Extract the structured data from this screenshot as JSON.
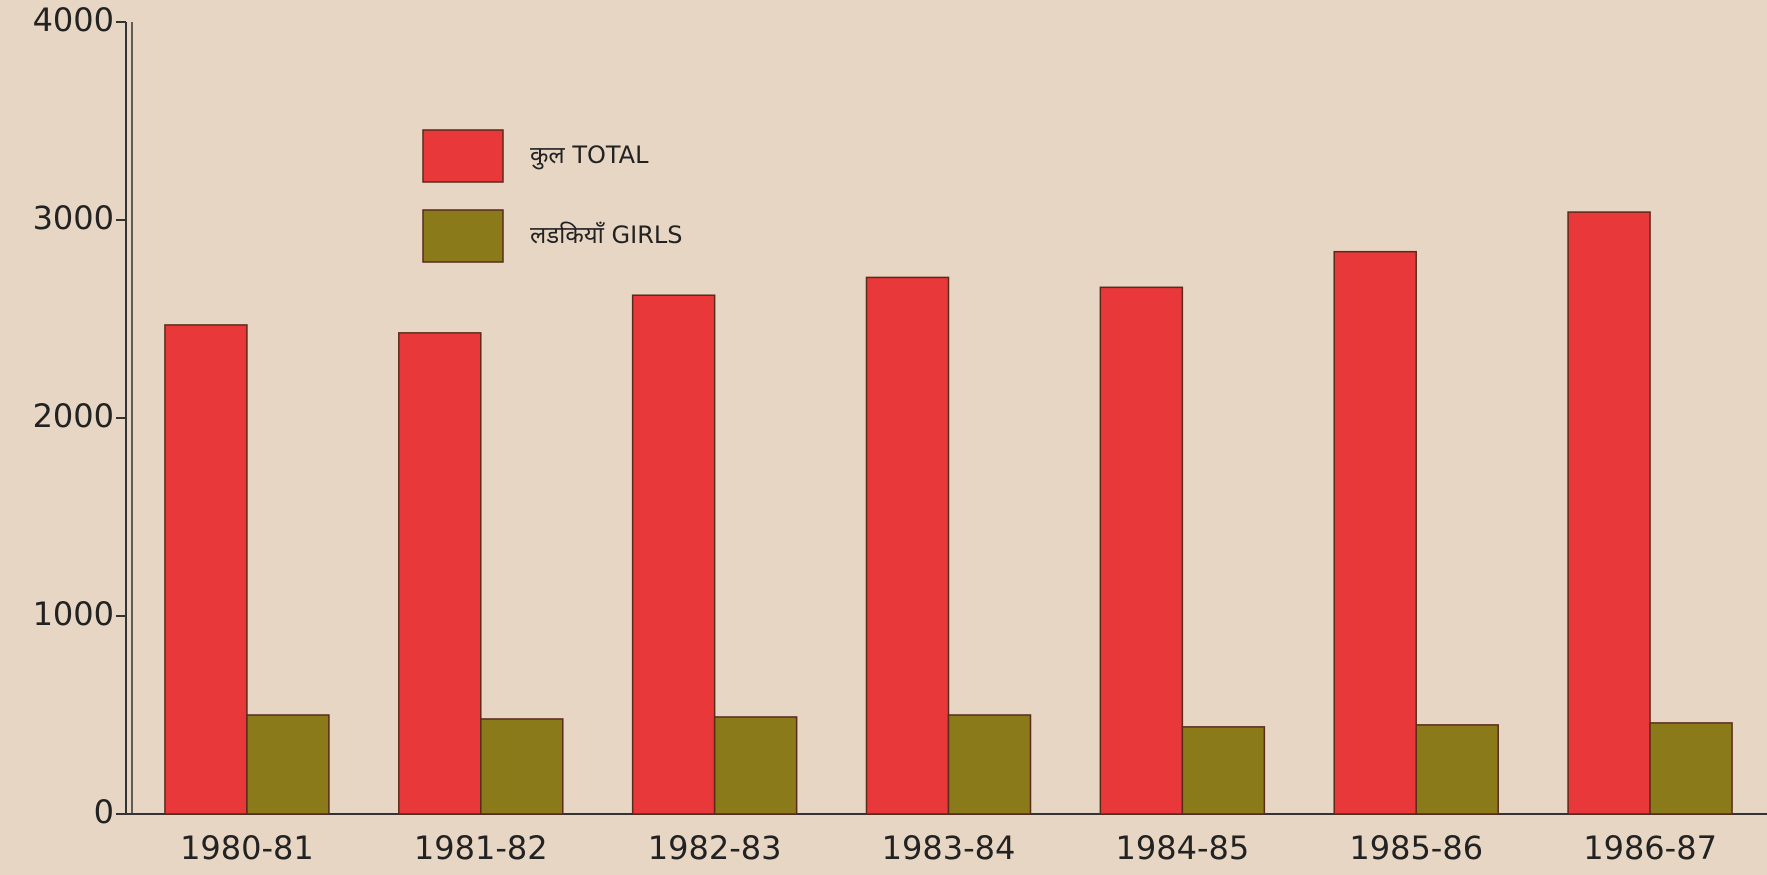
{
  "chart_data": {
    "type": "bar",
    "categories": [
      "1980-81",
      "1981-82",
      "1982-83",
      "1983-84",
      "1984-85",
      "1985-86",
      "1986-87"
    ],
    "series": [
      {
        "name": "कुल TOTAL",
        "color": "#e8383a",
        "values": [
          2470,
          2430,
          2620,
          2710,
          2660,
          2840,
          3040
        ]
      },
      {
        "name": "लडकियाँ GIRLS",
        "color": "#8a7a1a",
        "values": [
          500,
          480,
          490,
          500,
          440,
          450,
          460
        ]
      }
    ],
    "ylim": [
      0,
      4000
    ],
    "yticks": [
      0,
      1000,
      2000,
      3000,
      4000
    ],
    "legend": "top-left"
  }
}
